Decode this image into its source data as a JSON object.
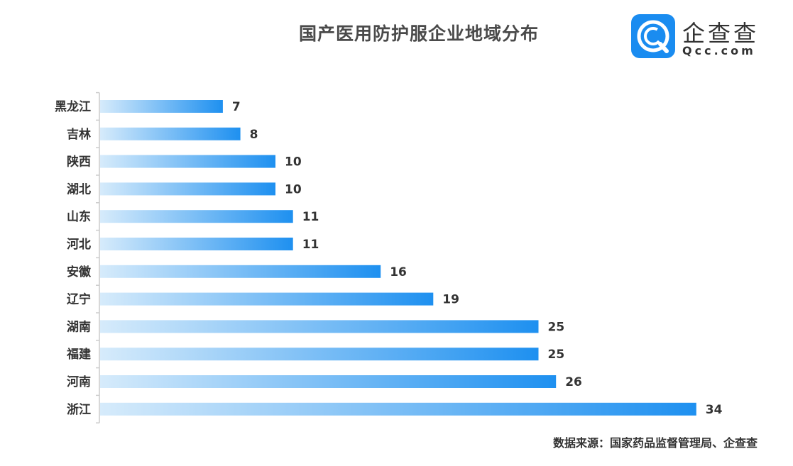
{
  "chart_data": {
    "type": "bar",
    "orientation": "horizontal",
    "title": "国产医用防护服企业地域分布",
    "categories": [
      "黑龙江",
      "吉林",
      "陕西",
      "湖北",
      "山东",
      "河北",
      "安徽",
      "辽宁",
      "湖南",
      "福建",
      "河南",
      "浙江"
    ],
    "values": [
      7,
      8,
      10,
      10,
      11,
      11,
      16,
      19,
      25,
      25,
      26,
      34
    ],
    "xlim": [
      0,
      34
    ],
    "xlabel": "",
    "ylabel": "",
    "grid": false,
    "bar_color_start": "#d6ebfb",
    "bar_color_end": "#1e90f0",
    "axis_color": "#cccccc",
    "label_color": "#333333"
  },
  "logo": {
    "name": "企查查",
    "url": "Qcc.com",
    "color": "#1a8cf0"
  },
  "source": "数据来源：国家药品监督管理局、企查查"
}
